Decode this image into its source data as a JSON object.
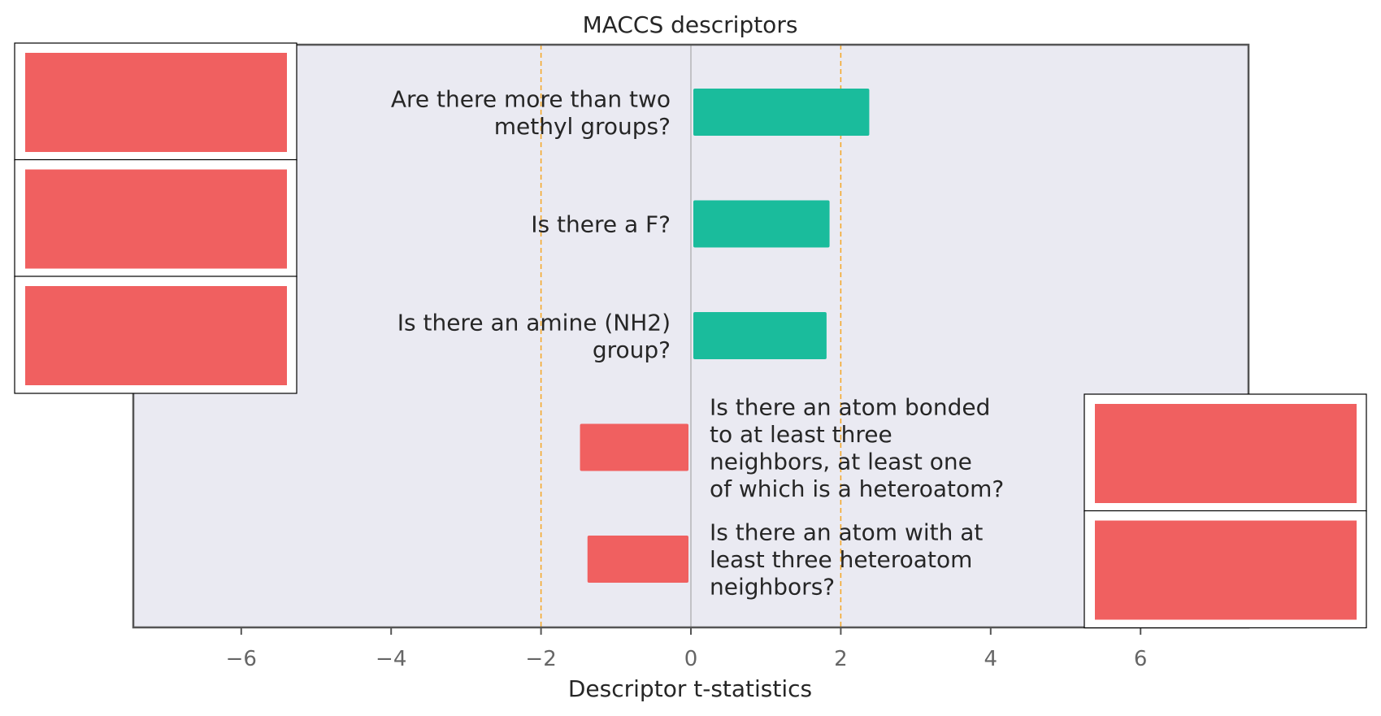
{
  "chart_data": {
    "type": "bar",
    "orientation": "horizontal",
    "title": "MACCS descriptors",
    "xlabel": "Descriptor t-statistics",
    "ylabel": "",
    "xlim": [
      -7.4,
      7.4
    ],
    "xticks": [
      -6,
      -4,
      -2,
      0,
      2,
      4,
      6
    ],
    "xtick_labels": [
      "−6",
      "−4",
      "−2",
      "0",
      "2",
      "4",
      "6"
    ],
    "threshold_lines": [
      -2,
      2
    ],
    "grid": false,
    "categories": [
      "Are there more than two methyl groups?",
      "Is there a F?",
      "Is there an amine (NH2) group?",
      "Is there an atom bonded to at least three neighbors, at least one of which is a heteroatom?",
      "Is there an atom with at least three heteroatom neighbors?"
    ],
    "category_label_lines": [
      [
        "Are there more than two",
        "methyl groups?"
      ],
      [
        "Is there a F?"
      ],
      [
        "Is there an amine (NH2)",
        "group?"
      ],
      [
        "Is there an atom bonded",
        "to at least three",
        "neighbors, at least one",
        "of which is a heteroatom?"
      ],
      [
        "Is there an atom with at",
        "least three heteroatom",
        "neighbors?"
      ]
    ],
    "values": [
      2.38,
      1.85,
      1.81,
      -1.48,
      -1.38
    ],
    "colors": {
      "positive": "#1abc9c",
      "negative": "#f06060",
      "threshold": "#f5a623",
      "plot_background": "#eaeaf2",
      "frame": "#555555"
    },
    "structure_image_placeholders": {
      "left_column_count": 3,
      "right_column_count": 2,
      "color": "#f06060"
    }
  }
}
